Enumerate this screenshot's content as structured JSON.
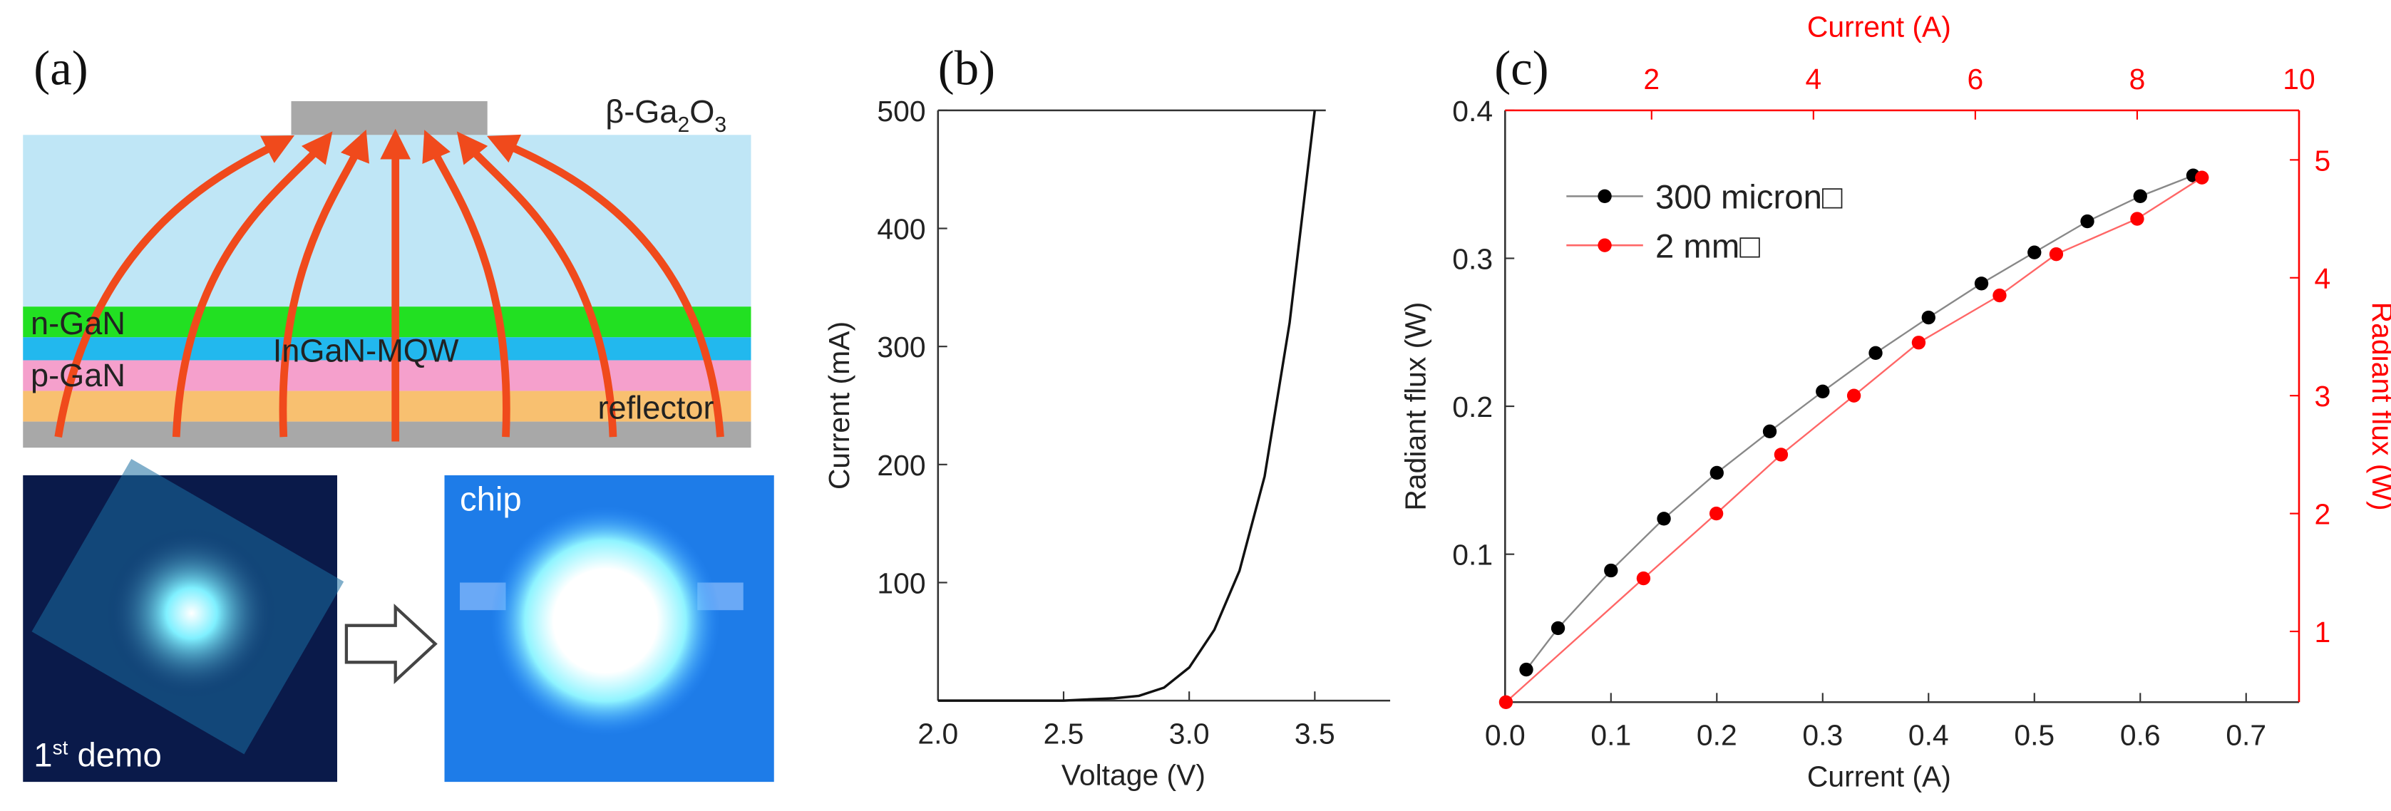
{
  "panel_labels": [
    "(a)",
    "(b)",
    "(c)"
  ],
  "diagram": {
    "substrate_label": [
      "β-Ga",
      "2",
      "O",
      "3"
    ],
    "layers": [
      "n-GaN",
      "InGaN-MQW",
      "p-GaN",
      "reflector"
    ]
  },
  "photos": {
    "first": [
      "1",
      "st",
      " demo"
    ],
    "second": "chip"
  },
  "chart_data": [
    {
      "type": "line",
      "xlabel": "Voltage (V)",
      "ylabel": "Current (mA)",
      "color": "#111111",
      "x": [
        2.0,
        2.1,
        2.2,
        2.3,
        2.4,
        2.5,
        2.6,
        2.7,
        2.8,
        2.9,
        3.0,
        3.1,
        3.2,
        3.3,
        3.4,
        3.5
      ],
      "values": [
        0,
        0,
        0,
        0,
        0,
        0,
        1,
        2,
        4,
        11,
        28,
        60,
        110,
        190,
        320,
        500
      ],
      "xlim": [
        2,
        3.8
      ],
      "ylim": [
        0,
        500
      ],
      "xticks": [
        {
          "value": 2,
          "label": "2.0"
        },
        2.5,
        {
          "value": 3,
          "label": "3.0"
        },
        3.5
      ],
      "yticks": [
        100,
        200,
        300,
        400,
        500
      ]
    },
    {
      "type": "scatter",
      "xlabel": "Current (A)",
      "ylabel": "Radiant flux (W)",
      "x2label": "Current (A)",
      "y2label": "Radiant flux (W)",
      "axis2_color": "#ff0000",
      "xlim": [
        0,
        0.75
      ],
      "ylim": [
        0,
        0.4
      ],
      "x2lim": [
        0.19,
        10
      ],
      "y2lim": [
        0.4,
        5.42
      ],
      "xticks": [
        {
          "value": 0,
          "label": "0.0"
        },
        0.1,
        0.2,
        0.3,
        0.4,
        0.5,
        0.6,
        0.7
      ],
      "yticks": [
        0.1,
        0.2,
        0.3,
        0.4
      ],
      "x2ticks": [
        2,
        4,
        6,
        8,
        10
      ],
      "y2ticks": [
        1,
        2,
        3,
        4,
        5
      ],
      "series": [
        {
          "name": "300 micron□",
          "color": "#000000",
          "line_color": "#888888",
          "x": [
            0.02,
            0.05,
            0.1,
            0.15,
            0.2,
            0.25,
            0.3,
            0.35,
            0.4,
            0.45,
            0.5,
            0.55,
            0.6,
            0.65
          ],
          "values": [
            0.022,
            0.05,
            0.089,
            0.124,
            0.155,
            0.183,
            0.21,
            0.236,
            0.26,
            0.283,
            0.304,
            0.325,
            0.342,
            0.356
          ]
        },
        {
          "name": "2 mm□",
          "color": "#ff0000",
          "line_color": "#ff6666",
          "axis": "y2",
          "x": [
            0.2,
            1.9,
            2.8,
            3.6,
            4.5,
            5.3,
            6.3,
            7.0,
            8.0,
            8.8
          ],
          "values": [
            0.4,
            1.45,
            2.0,
            2.5,
            3.0,
            3.45,
            3.85,
            4.2,
            4.5,
            4.85
          ]
        }
      ]
    }
  ]
}
